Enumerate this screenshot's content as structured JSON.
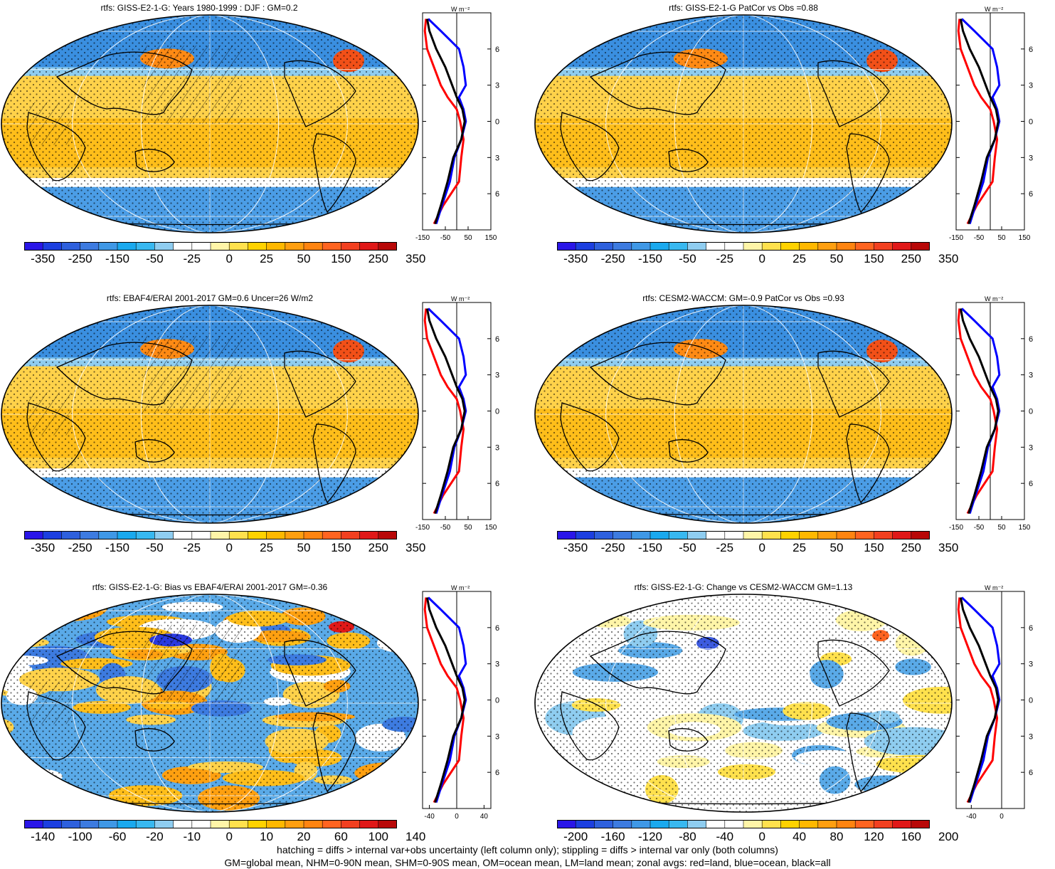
{
  "panels": [
    {
      "title": "rtfs: GISS-E2-1-G: Years 1980-1999 : DJF : GM=0.2",
      "scheme": "A",
      "hatch": true,
      "stipple": true,
      "colorbar_labels": [
        "-350",
        "-250",
        "-150",
        "-50",
        "-25",
        "0",
        "25",
        "50",
        "150",
        "250",
        "350"
      ],
      "zonal_xticks": [
        "-150",
        "-50",
        "50",
        "150"
      ],
      "zonal_xrange": [
        -150,
        150
      ]
    },
    {
      "title": "rtfs: GISS-E2-1-G PatCor vs Obs =0.88",
      "scheme": "A",
      "hatch": false,
      "stipple": true,
      "colorbar_labels": [
        "-350",
        "-250",
        "-150",
        "-50",
        "-25",
        "0",
        "25",
        "50",
        "150",
        "250",
        "350"
      ],
      "zonal_xticks": [
        "-150",
        "-50",
        "50",
        "150"
      ],
      "zonal_xrange": [
        -150,
        150
      ]
    },
    {
      "title": "rtfs: EBAF4/ERAI 2001-2017 GM=0.6 Uncer=26 W/m2",
      "scheme": "A",
      "hatch": true,
      "stipple": true,
      "colorbar_labels": [
        "-350",
        "-250",
        "-150",
        "-50",
        "-25",
        "0",
        "25",
        "50",
        "150",
        "250",
        "350"
      ],
      "zonal_xticks": [
        "-150",
        "-50",
        "50",
        "150"
      ],
      "zonal_xrange": [
        -150,
        150
      ]
    },
    {
      "title": "rtfs: CESM2-WACCM: GM=-0.9 PatCor vs Obs =0.93",
      "scheme": "A",
      "hatch": false,
      "stipple": true,
      "colorbar_labels": [
        "-350",
        "-250",
        "-150",
        "-50",
        "-25",
        "0",
        "25",
        "50",
        "150",
        "250",
        "350"
      ],
      "zonal_xticks": [
        "-150",
        "-50",
        "50",
        "150"
      ],
      "zonal_xrange": [
        -150,
        150
      ]
    },
    {
      "title": "rtfs: GISS-E2-1-G: Bias vs EBAF4/ERAI 2001-2017 GM=-0.36",
      "scheme": "B",
      "hatch": true,
      "stipple": true,
      "colorbar_labels": [
        "-140",
        "-100",
        "-60",
        "-20",
        "-10",
        "0",
        "10",
        "20",
        "60",
        "100",
        "140"
      ],
      "zonal_xticks": [
        "-40",
        "0",
        "40"
      ],
      "zonal_xrange": [
        -50,
        50
      ]
    },
    {
      "title": "rtfs: GISS-E2-1-G: Change vs CESM2-WACCM GM=1.13",
      "scheme": "C",
      "hatch": false,
      "stipple": true,
      "colorbar_labels": [
        "-200",
        "-160",
        "-120",
        "-80",
        "-40",
        "0",
        "40",
        "80",
        "120",
        "160",
        "200"
      ],
      "zonal_xticks": [
        "-40",
        "0"
      ],
      "zonal_xrange": [
        -60,
        30
      ]
    }
  ],
  "zonal_unit": "W m⁻²",
  "lat_labels": [
    "60N",
    "30N",
    "0",
    "30S",
    "60S"
  ],
  "colorbar_colors": [
    "#2a16e8",
    "#1c3fe0",
    "#2e60dd",
    "#3d7be0",
    "#3f98e6",
    "#1aa9ee",
    "#38b8f0",
    "#8fcdf0",
    "#ffffff",
    "#ffffff",
    "#fff5a8",
    "#ffe14d",
    "#ffd200",
    "#ffb800",
    "#ff9f10",
    "#ff8410",
    "#ff6420",
    "#f24020",
    "#e01818",
    "#b80808"
  ],
  "legend_colors": {
    "land": "#ff0000",
    "ocean": "#0000ff",
    "all": "#000000"
  },
  "footer": [
    "hatching = diffs > internal var+obs uncertainty (left column only); stippling = diffs > internal var only (both columns)",
    "GM=global mean, NHM=0-90N mean, SHM=0-90S mean, OM=ocean mean, LM=land mean; zonal avgs: red=land, blue=ocean, black=all"
  ]
}
